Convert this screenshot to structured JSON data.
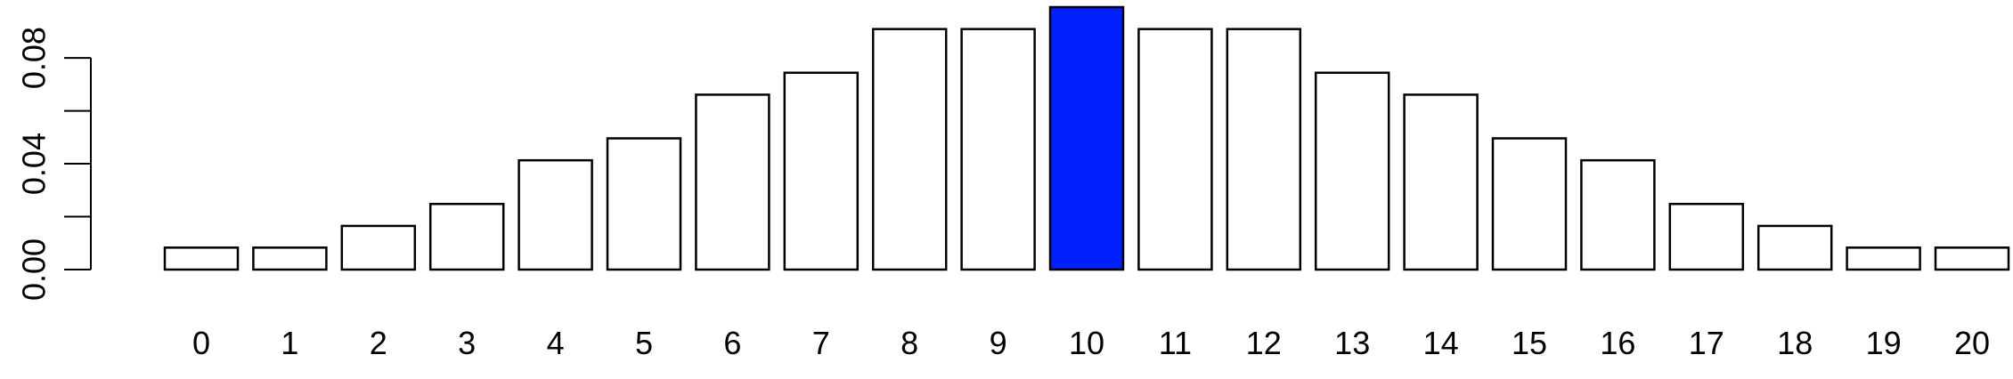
{
  "chart_data": {
    "type": "bar",
    "categories": [
      "0",
      "1",
      "2",
      "3",
      "4",
      "5",
      "6",
      "7",
      "8",
      "9",
      "10",
      "11",
      "12",
      "13",
      "14",
      "15",
      "16",
      "17",
      "18",
      "19",
      "20"
    ],
    "values": [
      0.0083,
      0.0083,
      0.0165,
      0.0248,
      0.0413,
      0.0496,
      0.0661,
      0.0744,
      0.0909,
      0.0909,
      0.0992,
      0.0909,
      0.0909,
      0.0744,
      0.0661,
      0.0496,
      0.0413,
      0.0248,
      0.0165,
      0.0083,
      0.0083
    ],
    "highlight_index": 10,
    "bar_color": "#ffffff",
    "highlight_color": "#0020ff",
    "yticks": [
      0,
      0.02,
      0.04,
      0.06,
      0.08
    ],
    "ytick_labels": [
      "0.00",
      "",
      "0.04",
      "",
      "0.08"
    ],
    "ylim": [
      0,
      0.0992
    ],
    "grid": false,
    "title": "",
    "xlabel": "",
    "ylabel": ""
  }
}
